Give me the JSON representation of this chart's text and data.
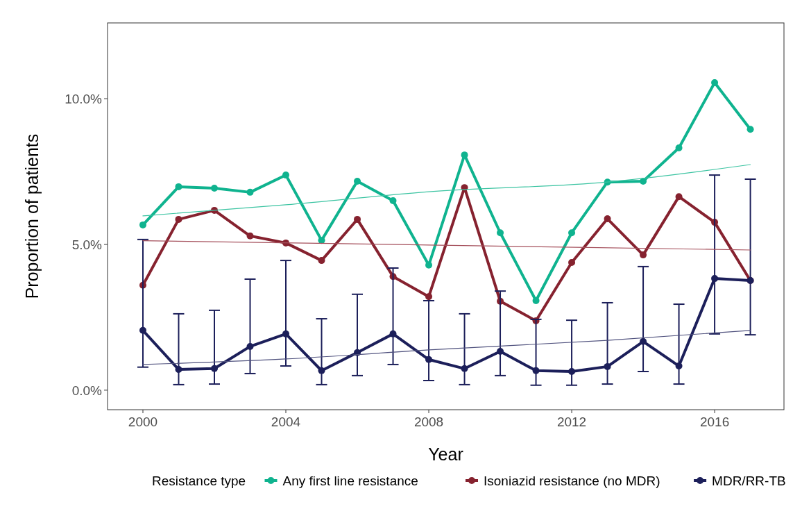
{
  "chart_data": {
    "type": "line",
    "xlabel": "Year",
    "ylabel": "Proportion of patients",
    "legend_title": "Resistance type",
    "x": [
      2000,
      2001,
      2002,
      2003,
      2004,
      2005,
      2006,
      2007,
      2008,
      2009,
      2010,
      2011,
      2012,
      2013,
      2014,
      2015,
      2016,
      2017
    ],
    "series": [
      {
        "name": "Any first line resistance",
        "color": "#0fb38f",
        "values": [
          5.67,
          6.98,
          6.93,
          6.79,
          7.38,
          5.14,
          7.17,
          6.5,
          4.29,
          8.07,
          5.4,
          3.07,
          5.4,
          7.14,
          7.17,
          8.31,
          10.55,
          8.95
        ]
      },
      {
        "name": "Isoniazid resistance (no MDR)",
        "color": "#86222f",
        "values": [
          3.6,
          5.86,
          6.17,
          5.29,
          5.05,
          4.45,
          5.86,
          3.9,
          3.21,
          6.95,
          3.05,
          2.38,
          4.38,
          5.88,
          4.64,
          6.64,
          5.76,
          3.76
        ]
      },
      {
        "name": "MDR/RR-TB",
        "color": "#1c1f5a",
        "values": [
          2.05,
          0.71,
          0.74,
          1.5,
          1.93,
          0.67,
          1.29,
          1.93,
          1.05,
          0.74,
          1.33,
          0.67,
          0.64,
          0.81,
          1.67,
          0.83,
          3.83,
          3.76
        ],
        "errors": [
          [
            0.79,
            5.17
          ],
          [
            0.19,
            2.62
          ],
          [
            0.21,
            2.74
          ],
          [
            0.57,
            3.81
          ],
          [
            0.83,
            4.45
          ],
          [
            0.19,
            2.45
          ],
          [
            0.5,
            3.29
          ],
          [
            0.88,
            4.19
          ],
          [
            0.33,
            3.07
          ],
          [
            0.19,
            2.62
          ],
          [
            0.5,
            3.4
          ],
          [
            0.17,
            2.43
          ],
          [
            0.17,
            2.4
          ],
          [
            0.21,
            3.0
          ],
          [
            0.64,
            4.24
          ],
          [
            0.21,
            2.95
          ],
          [
            1.93,
            7.38
          ],
          [
            1.9,
            7.24
          ]
        ]
      },
      {
        "color": "#3cc4a2",
        "marker": "none",
        "x": [
          2000,
          2004,
          2008,
          2013,
          2017
        ],
        "values": [
          5.98,
          6.36,
          6.81,
          7.14,
          7.74
        ]
      },
      {
        "color": "#a5505c",
        "marker": "none",
        "x": [
          2000,
          2008,
          2017
        ],
        "values": [
          5.13,
          4.98,
          4.81
        ]
      },
      {
        "color": "#50527e",
        "marker": "none",
        "x": [
          2000,
          2004,
          2008,
          2013,
          2017
        ],
        "values": [
          0.88,
          1.07,
          1.38,
          1.71,
          2.05
        ]
      }
    ],
    "xlim": [
      1999.01,
      2017.94
    ],
    "ylim": [
      -0.67,
      12.6
    ],
    "xticks": [
      2000,
      2004,
      2008,
      2012,
      2016
    ],
    "yticks": [
      {
        "value": 0,
        "label": "0.0%"
      },
      {
        "value": 5,
        "label": "5.0%"
      },
      {
        "value": 10,
        "label": "10.0%"
      }
    ],
    "grid": false,
    "legend": "bottom",
    "marker": "circle",
    "line_style": "solid"
  }
}
